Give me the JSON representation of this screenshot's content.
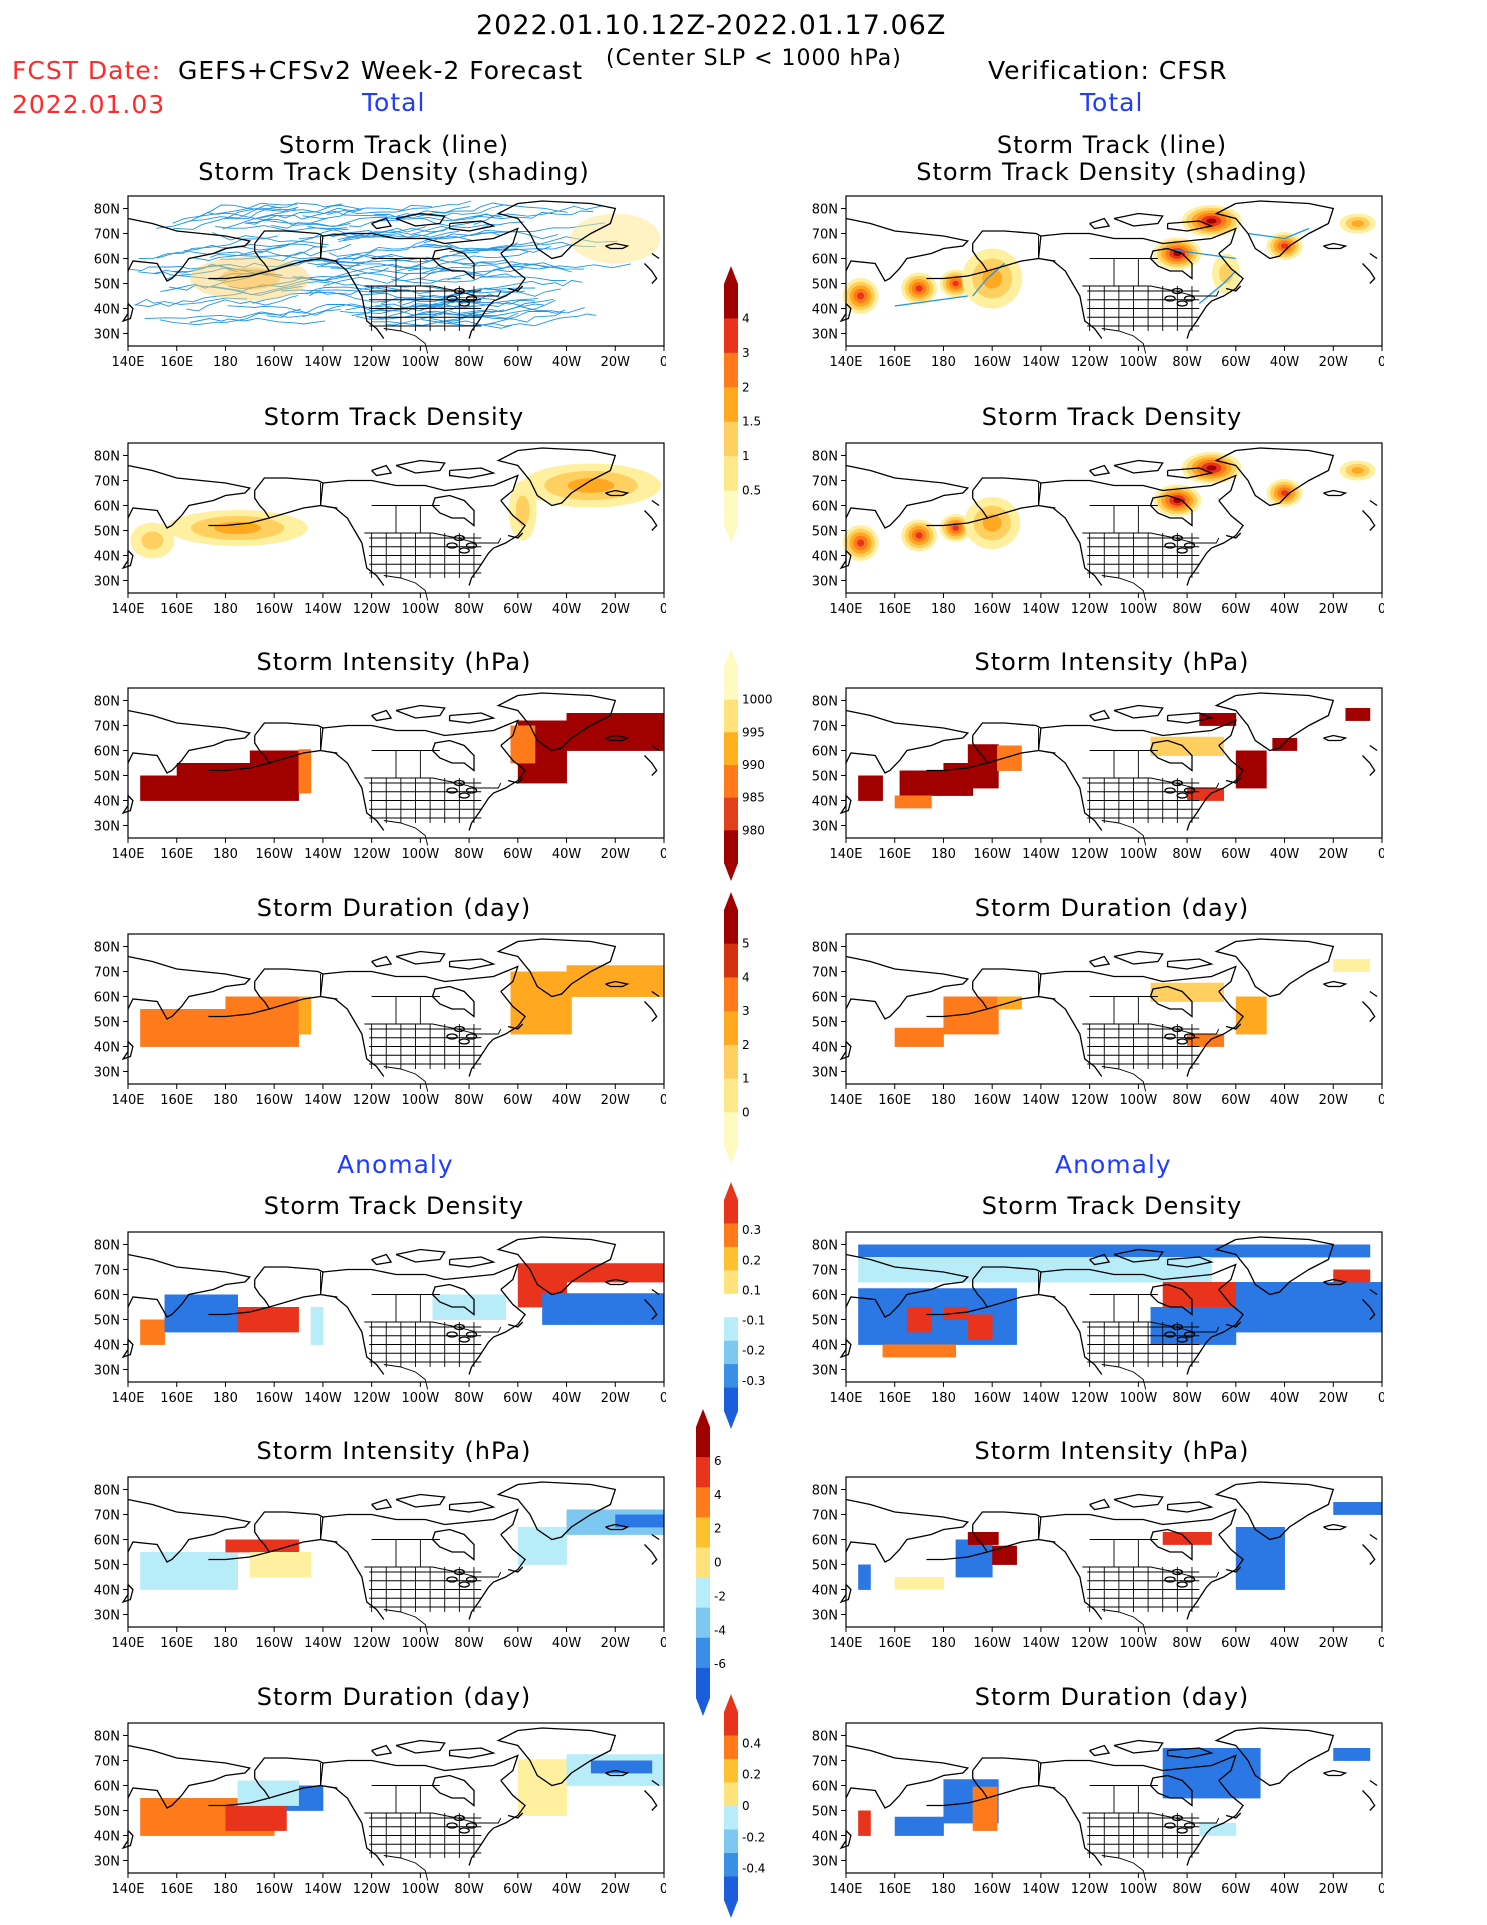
{
  "header": {
    "period": "2022.01.10.12Z-2022.01.17.06Z",
    "fcst_date_label": "FCST Date:",
    "fcst_date": "2022.01.03",
    "left_title": "GEFS+CFSv2 Week-2 Forecast",
    "criterion": "(Center SLP < 1000 hPa)",
    "right_title": "Verification: CFSR"
  },
  "sections": {
    "total": "Total",
    "anomaly": "Anomaly"
  },
  "panel_titles": {
    "track_line": "Storm Track (line)",
    "track_density_shading": "Storm Track Density (shading)",
    "density": "Storm Track Density",
    "intensity": "Storm Intensity (hPa)",
    "duration": "Storm Duration (day)"
  },
  "axes": {
    "lat_labels": [
      "80N",
      "70N",
      "60N",
      "50N",
      "40N",
      "30N"
    ],
    "lon_labels": [
      "140E",
      "160E",
      "180",
      "160W",
      "140W",
      "120W",
      "100W",
      "80W",
      "60W",
      "40W",
      "20W",
      "0"
    ]
  },
  "colorbars": [
    {
      "name": "density",
      "labels": [
        "4",
        "3",
        "2",
        "1.5",
        "1",
        "0.5"
      ],
      "colors": [
        "#a00000",
        "#e8341c",
        "#ff7a1a",
        "#ffa820",
        "#ffd060",
        "#ffe88a",
        "#fffac0"
      ]
    },
    {
      "name": "intensity",
      "labels": [
        "1000",
        "995",
        "990",
        "985",
        "980"
      ],
      "colors": [
        "#fffac0",
        "#ffe27a",
        "#ffb020",
        "#ff7a1a",
        "#e0401a",
        "#a00000"
      ]
    },
    {
      "name": "duration",
      "labels": [
        "5",
        "4",
        "3",
        "2",
        "1",
        "0"
      ],
      "colors": [
        "#a00000",
        "#d2320f",
        "#ff7a1a",
        "#ffa820",
        "#ffd060",
        "#ffe88a",
        "#fffac0"
      ]
    },
    {
      "name": "density-anomaly",
      "labels": [
        "0.3",
        "0.2",
        "0.1",
        "-0.1",
        "-0.2",
        "-0.3"
      ],
      "colors": [
        "#e8341c",
        "#ff7a1a",
        "#ffc030",
        "#ffe27a",
        "#ffffff",
        "#b8ecf8",
        "#7cc8f0",
        "#3b8ee6",
        "#1b5edc"
      ]
    },
    {
      "name": "intensity-anomaly",
      "labels": [
        "6",
        "4",
        "2",
        "0",
        "-2",
        "-4",
        "-6"
      ],
      "colors": [
        "#a00000",
        "#e8341c",
        "#ff7a1a",
        "#ffc030",
        "#ffe27a",
        "#b8ecf8",
        "#7cc8f0",
        "#3b8ee6",
        "#1b5edc"
      ]
    },
    {
      "name": "duration-anomaly",
      "labels": [
        "0.4",
        "0.2",
        "0",
        "-0.2",
        "-0.4"
      ],
      "colors": [
        "#e8341c",
        "#ff7a1a",
        "#ffc030",
        "#ffe27a",
        "#b8ecf8",
        "#7cc8f0",
        "#3b8ee6",
        "#1b5edc"
      ]
    }
  ],
  "colors": {
    "track_line": "#1e96e6",
    "dark_red": "#a00000",
    "red": "#e8341c",
    "orange": "#ff7a1a",
    "light_orange": "#ffa820",
    "yellow": "#ffd060",
    "pale_yellow": "#fff0a0",
    "light_blue": "#b8ecf8",
    "mid_blue": "#7cc8f0",
    "blue": "#2b78e4"
  }
}
